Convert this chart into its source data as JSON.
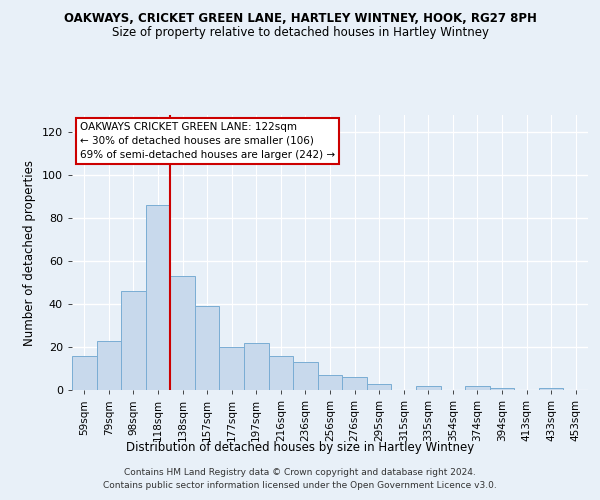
{
  "title": "OAKWAYS, CRICKET GREEN LANE, HARTLEY WINTNEY, HOOK, RG27 8PH",
  "subtitle": "Size of property relative to detached houses in Hartley Wintney",
  "xlabel": "Distribution of detached houses by size in Hartley Wintney",
  "ylabel": "Number of detached properties",
  "categories": [
    "59sqm",
    "79sqm",
    "98sqm",
    "118sqm",
    "138sqm",
    "157sqm",
    "177sqm",
    "197sqm",
    "216sqm",
    "236sqm",
    "256sqm",
    "276sqm",
    "295sqm",
    "315sqm",
    "335sqm",
    "354sqm",
    "374sqm",
    "394sqm",
    "413sqm",
    "433sqm",
    "453sqm"
  ],
  "values": [
    16,
    23,
    46,
    86,
    53,
    39,
    20,
    22,
    16,
    13,
    7,
    6,
    3,
    0,
    2,
    0,
    2,
    1,
    0,
    1,
    0
  ],
  "bar_color": "#c8d9ec",
  "bar_edge_color": "#7aadd4",
  "bar_linewidth": 0.7,
  "vline_pos": 3.5,
  "vline_color": "#cc0000",
  "annotation_line1": "OAKWAYS CRICKET GREEN LANE: 122sqm",
  "annotation_line2": "← 30% of detached houses are smaller (106)",
  "annotation_line3": "69% of semi-detached houses are larger (242) →",
  "annotation_box_facecolor": "white",
  "annotation_box_edgecolor": "#cc0000",
  "bg_color": "#e8f0f8",
  "grid_color": "white",
  "ylim": [
    0,
    128
  ],
  "yticks": [
    0,
    20,
    40,
    60,
    80,
    100,
    120
  ],
  "footer1": "Contains HM Land Registry data © Crown copyright and database right 2024.",
  "footer2": "Contains public sector information licensed under the Open Government Licence v3.0."
}
